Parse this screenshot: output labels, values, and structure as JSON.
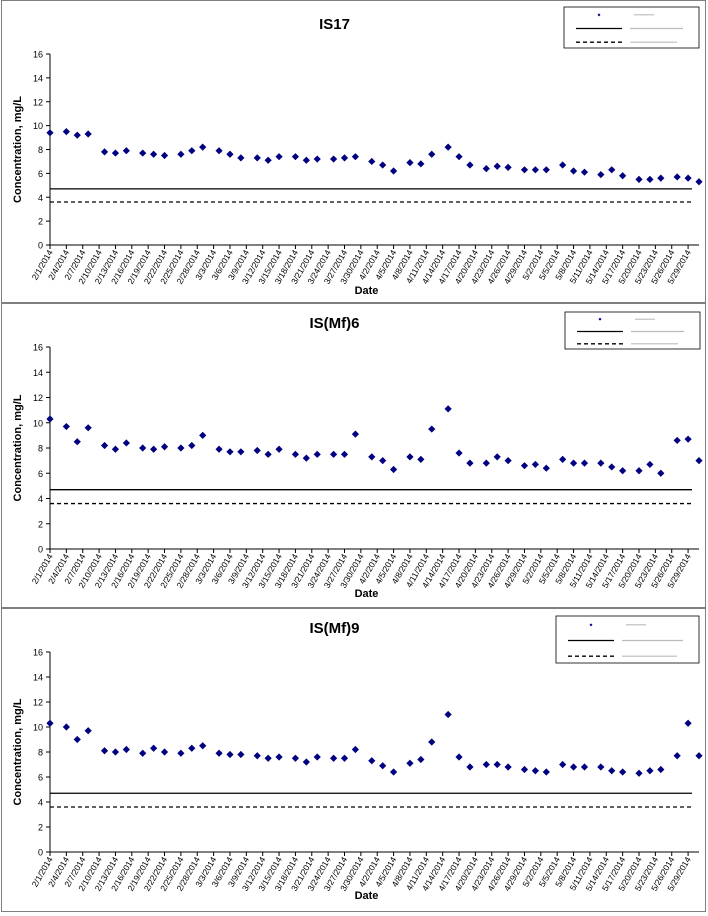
{
  "marker_color": "#000080",
  "line_color": "#000000",
  "chart_data": [
    {
      "type": "scatter",
      "title": "IS17",
      "xlabel": "Date",
      "ylabel": "Concentration, mg/L",
      "ylim": [
        0,
        16
      ],
      "yticks": [
        "0",
        "2",
        "4",
        "6",
        "8",
        "10",
        "12",
        "14",
        "16"
      ],
      "xlim": [
        "2/1/2014",
        "5/31/2014"
      ],
      "xtick_labels": [
        "2/1/2014",
        "2/4/2014",
        "2/7/2014",
        "2/10/2014",
        "2/13/2014",
        "2/16/2014",
        "2/19/2014",
        "2/22/2014",
        "2/25/2014",
        "2/28/2014",
        "3/3/2014",
        "3/6/2014",
        "3/9/2014",
        "3/12/2014",
        "3/15/2014",
        "3/18/2014",
        "3/21/2014",
        "3/24/2014",
        "3/27/2014",
        "3/30/2014",
        "4/2/2014",
        "4/5/2014",
        "4/8/2014",
        "4/11/2014",
        "4/14/2014",
        "4/17/2014",
        "4/20/2014",
        "4/23/2014",
        "4/26/2014",
        "4/29/2014",
        "5/2/2014",
        "5/5/2014",
        "5/8/2014",
        "5/11/2014",
        "5/14/2014",
        "5/17/2014",
        "5/20/2014",
        "5/23/2014",
        "5/26/2014",
        "5/29/2014"
      ],
      "legend": "top-right",
      "grid": false,
      "series": [
        {
          "kind": "points",
          "x": [
            "2/1/2014",
            "2/4/2014",
            "2/6/2014",
            "2/8/2014",
            "2/11/2014",
            "2/13/2014",
            "2/15/2014",
            "2/18/2014",
            "2/20/2014",
            "2/22/2014",
            "2/25/2014",
            "2/27/2014",
            "3/1/2014",
            "3/4/2014",
            "3/6/2014",
            "3/8/2014",
            "3/11/2014",
            "3/13/2014",
            "3/15/2014",
            "3/18/2014",
            "3/20/2014",
            "3/22/2014",
            "3/25/2014",
            "3/27/2014",
            "3/29/2014",
            "4/1/2014",
            "4/3/2014",
            "4/5/2014",
            "4/8/2014",
            "4/10/2014",
            "4/12/2014",
            "4/15/2014",
            "4/17/2014",
            "4/19/2014",
            "4/22/2014",
            "4/24/2014",
            "4/26/2014",
            "4/29/2014",
            "5/1/2014",
            "5/3/2014",
            "5/6/2014",
            "5/8/2014",
            "5/10/2014",
            "5/13/2014",
            "5/15/2014",
            "5/17/2014",
            "5/20/2014",
            "5/22/2014",
            "5/24/2014",
            "5/27/2014",
            "5/29/2014",
            "5/31/2014"
          ],
          "y": [
            9.4,
            9.5,
            9.2,
            9.3,
            7.8,
            7.7,
            7.9,
            7.7,
            7.6,
            7.5,
            7.6,
            7.9,
            8.2,
            7.9,
            7.6,
            7.3,
            7.3,
            7.1,
            7.4,
            7.4,
            7.1,
            7.2,
            7.2,
            7.3,
            7.4,
            7.0,
            6.7,
            6.2,
            6.9,
            6.8,
            7.6,
            8.2,
            7.4,
            6.7,
            6.4,
            6.6,
            6.5,
            6.3,
            6.3,
            6.3,
            6.7,
            6.2,
            6.1,
            5.9,
            6.3,
            5.8,
            5.5,
            5.5,
            5.6,
            5.7,
            5.6,
            5.3
          ]
        },
        {
          "kind": "hline",
          "style": "solid",
          "y": 4.7
        },
        {
          "kind": "hline",
          "style": "dashed",
          "y": 3.6
        }
      ]
    },
    {
      "type": "scatter",
      "title": "IS(Mf)6",
      "xlabel": "Date",
      "ylabel": "Concentration, mg/L",
      "ylim": [
        0,
        16
      ],
      "yticks": [
        "0",
        "2",
        "4",
        "6",
        "8",
        "10",
        "12",
        "14",
        "16"
      ],
      "xlim": [
        "2/1/2014",
        "5/31/2014"
      ],
      "xtick_labels": [
        "2/1/2014",
        "2/4/2014",
        "2/7/2014",
        "2/10/2014",
        "2/13/2014",
        "2/16/2014",
        "2/19/2014",
        "2/22/2014",
        "2/25/2014",
        "2/28/2014",
        "3/3/2014",
        "3/6/2014",
        "3/9/2014",
        "3/12/2014",
        "3/15/2014",
        "3/18/2014",
        "3/21/2014",
        "3/24/2014",
        "3/27/2014",
        "3/30/2014",
        "4/2/2014",
        "4/5/2014",
        "4/8/2014",
        "4/11/2014",
        "4/14/2014",
        "4/17/2014",
        "4/20/2014",
        "4/23/2014",
        "4/26/2014",
        "4/29/2014",
        "5/2/2014",
        "5/5/2014",
        "5/8/2014",
        "5/11/2014",
        "5/14/2014",
        "5/17/2014",
        "5/20/2014",
        "5/23/2014",
        "5/26/2014",
        "5/29/2014"
      ],
      "legend": "top-right",
      "grid": false,
      "series": [
        {
          "kind": "points",
          "x": [
            "2/1/2014",
            "2/4/2014",
            "2/6/2014",
            "2/8/2014",
            "2/11/2014",
            "2/13/2014",
            "2/15/2014",
            "2/18/2014",
            "2/20/2014",
            "2/22/2014",
            "2/25/2014",
            "2/27/2014",
            "3/1/2014",
            "3/4/2014",
            "3/6/2014",
            "3/8/2014",
            "3/11/2014",
            "3/13/2014",
            "3/15/2014",
            "3/18/2014",
            "3/20/2014",
            "3/22/2014",
            "3/25/2014",
            "3/27/2014",
            "3/29/2014",
            "4/1/2014",
            "4/3/2014",
            "4/5/2014",
            "4/8/2014",
            "4/10/2014",
            "4/12/2014",
            "4/15/2014",
            "4/17/2014",
            "4/19/2014",
            "4/22/2014",
            "4/24/2014",
            "4/26/2014",
            "4/29/2014",
            "5/1/2014",
            "5/3/2014",
            "5/6/2014",
            "5/8/2014",
            "5/10/2014",
            "5/13/2014",
            "5/15/2014",
            "5/17/2014",
            "5/20/2014",
            "5/22/2014",
            "5/24/2014",
            "5/27/2014",
            "5/29/2014",
            "5/31/2014"
          ],
          "y": [
            10.3,
            9.7,
            8.5,
            9.6,
            8.2,
            7.9,
            8.4,
            8.0,
            7.9,
            8.1,
            8.0,
            8.2,
            9.0,
            7.9,
            7.7,
            7.7,
            7.8,
            7.5,
            7.9,
            7.5,
            7.2,
            7.5,
            7.5,
            7.5,
            9.1,
            7.3,
            7.0,
            6.3,
            7.3,
            7.1,
            9.5,
            11.1,
            7.6,
            6.8,
            6.8,
            7.3,
            7.0,
            6.6,
            6.7,
            6.4,
            7.1,
            6.8,
            6.8,
            6.8,
            6.5,
            6.2,
            6.2,
            6.7,
            6.0,
            8.6,
            8.7,
            7.0
          ]
        },
        {
          "kind": "hline",
          "style": "solid",
          "y": 4.7
        },
        {
          "kind": "hline",
          "style": "dashed",
          "y": 3.6
        }
      ]
    },
    {
      "type": "scatter",
      "title": "IS(Mf)9",
      "xlabel": "Date",
      "ylabel": "Concentration, mg/L",
      "ylim": [
        0,
        16
      ],
      "yticks": [
        "0",
        "2",
        "4",
        "6",
        "8",
        "10",
        "12",
        "14",
        "16"
      ],
      "xlim": [
        "2/1/2014",
        "5/31/2014"
      ],
      "xtick_labels": [
        "2/1/2014",
        "2/4/2014",
        "2/7/2014",
        "2/10/2014",
        "2/13/2014",
        "2/16/2014",
        "2/19/2014",
        "2/22/2014",
        "2/25/2014",
        "2/28/2014",
        "3/3/2014",
        "3/6/2014",
        "3/9/2014",
        "3/12/2014",
        "3/15/2014",
        "3/18/2014",
        "3/21/2014",
        "3/24/2014",
        "3/27/2014",
        "3/30/2014",
        "4/2/2014",
        "4/5/2014",
        "4/8/2014",
        "4/11/2014",
        "4/14/2014",
        "4/17/2014",
        "4/20/2014",
        "4/23/2014",
        "4/26/2014",
        "4/29/2014",
        "5/2/2014",
        "5/5/2014",
        "5/8/2014",
        "5/11/2014",
        "5/14/2014",
        "5/17/2014",
        "5/20/2014",
        "5/23/2014",
        "5/26/2014",
        "5/29/2014"
      ],
      "legend": "top-right",
      "grid": false,
      "series": [
        {
          "kind": "points",
          "x": [
            "2/1/2014",
            "2/4/2014",
            "2/6/2014",
            "2/8/2014",
            "2/11/2014",
            "2/13/2014",
            "2/15/2014",
            "2/18/2014",
            "2/20/2014",
            "2/22/2014",
            "2/25/2014",
            "2/27/2014",
            "3/1/2014",
            "3/4/2014",
            "3/6/2014",
            "3/8/2014",
            "3/11/2014",
            "3/13/2014",
            "3/15/2014",
            "3/18/2014",
            "3/20/2014",
            "3/22/2014",
            "3/25/2014",
            "3/27/2014",
            "3/29/2014",
            "4/1/2014",
            "4/3/2014",
            "4/5/2014",
            "4/8/2014",
            "4/10/2014",
            "4/12/2014",
            "4/15/2014",
            "4/17/2014",
            "4/19/2014",
            "4/22/2014",
            "4/24/2014",
            "4/26/2014",
            "4/29/2014",
            "5/1/2014",
            "5/3/2014",
            "5/6/2014",
            "5/8/2014",
            "5/10/2014",
            "5/13/2014",
            "5/15/2014",
            "5/17/2014",
            "5/20/2014",
            "5/22/2014",
            "5/24/2014",
            "5/27/2014",
            "5/29/2014",
            "5/31/2014"
          ],
          "y": [
            10.3,
            10.0,
            9.0,
            9.7,
            8.1,
            8.0,
            8.2,
            7.9,
            8.3,
            8.0,
            7.9,
            8.3,
            8.5,
            7.9,
            7.8,
            7.8,
            7.7,
            7.5,
            7.6,
            7.5,
            7.2,
            7.6,
            7.5,
            7.5,
            8.2,
            7.3,
            6.9,
            6.4,
            7.1,
            7.4,
            8.8,
            11.0,
            7.6,
            6.8,
            7.0,
            7.0,
            6.8,
            6.6,
            6.5,
            6.4,
            7.0,
            6.8,
            6.8,
            6.8,
            6.5,
            6.4,
            6.3,
            6.5,
            6.6,
            7.7,
            10.3,
            7.7
          ]
        },
        {
          "kind": "hline",
          "style": "solid",
          "y": 4.7
        },
        {
          "kind": "hline",
          "style": "dashed",
          "y": 3.6
        }
      ]
    }
  ]
}
